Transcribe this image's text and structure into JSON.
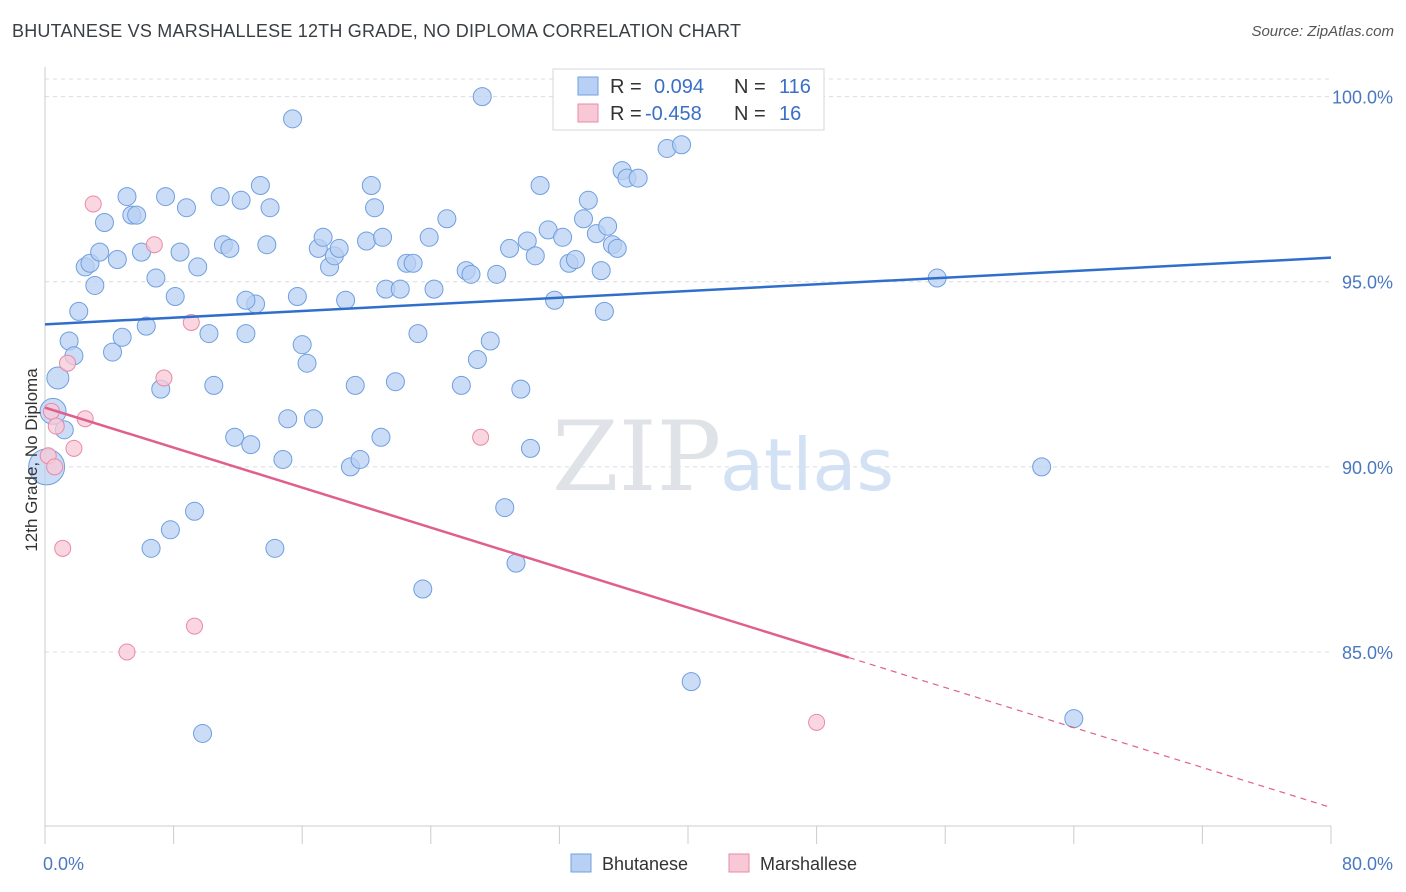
{
  "title": "BHUTANESE VS MARSHALLESE 12TH GRADE, NO DIPLOMA CORRELATION CHART",
  "source": "Source: ZipAtlas.com",
  "watermark": {
    "zip": "ZIP",
    "atlas": "atlas"
  },
  "colors": {
    "bhutanese_fill": "#b8d0f3",
    "bhutanese_stroke": "#6f9fe0",
    "bhutanese_line": "#2f6fcb",
    "marshallese_fill": "#f8c8d6",
    "marshallese_stroke": "#e88aa8",
    "marshallese_line": "#e0608c",
    "axis_text": "#4a78c0",
    "grid": "#d8dce2"
  },
  "legend": {
    "rows": [
      {
        "r_label": "R =",
        "r_value": "0.094",
        "n_label": "N =",
        "n_value": "116"
      },
      {
        "r_label": "R =",
        "r_value": "-0.458",
        "n_label": "N =",
        "n_value": "16"
      }
    ]
  },
  "bottom_legend": [
    "Bhutanese",
    "Marshallese"
  ],
  "chart_data": {
    "type": "scatter",
    "title": "BHUTANESE VS MARSHALLESE 12TH GRADE, NO DIPLOMA CORRELATION CHART",
    "xlabel": "",
    "ylabel": "12th Grade, No Diploma",
    "x_tick_labels": [
      "0.0%",
      "80.0%"
    ],
    "y_tick_labels": [
      "100.0%",
      "95.0%",
      "90.0%",
      "85.0%"
    ],
    "y_ticks": [
      100,
      95,
      90,
      85
    ],
    "xlim": [
      0,
      80
    ],
    "ylim": [
      80.3,
      100.8
    ],
    "grid": true,
    "legend_position": "top-center",
    "series": [
      {
        "name": "Bhutanese",
        "r": 0.094,
        "n": 116,
        "trend": {
          "x": [
            0,
            80
          ],
          "y": [
            93.85,
            95.65
          ],
          "dashed_from": null
        },
        "points": [
          [
            0.1,
            90.0
          ],
          [
            0.5,
            91.5
          ],
          [
            0.8,
            92.4
          ],
          [
            1.2,
            91.0
          ],
          [
            1.5,
            93.4
          ],
          [
            1.8,
            93.0
          ],
          [
            2.1,
            94.2
          ],
          [
            2.5,
            95.4
          ],
          [
            2.8,
            95.5
          ],
          [
            3.1,
            94.9
          ],
          [
            3.4,
            95.8
          ],
          [
            3.7,
            96.6
          ],
          [
            4.2,
            93.1
          ],
          [
            4.5,
            95.6
          ],
          [
            4.8,
            93.5
          ],
          [
            5.1,
            97.3
          ],
          [
            5.4,
            96.8
          ],
          [
            5.7,
            96.8
          ],
          [
            6.0,
            95.8
          ],
          [
            6.3,
            93.8
          ],
          [
            6.6,
            87.8
          ],
          [
            6.9,
            95.1
          ],
          [
            7.2,
            92.1
          ],
          [
            7.5,
            97.3
          ],
          [
            7.8,
            88.3
          ],
          [
            8.1,
            94.6
          ],
          [
            8.4,
            95.8
          ],
          [
            8.8,
            97.0
          ],
          [
            9.3,
            88.8
          ],
          [
            9.5,
            95.4
          ],
          [
            9.8,
            82.8
          ],
          [
            10.2,
            93.6
          ],
          [
            10.5,
            92.2
          ],
          [
            10.9,
            97.3
          ],
          [
            11.1,
            96.0
          ],
          [
            11.5,
            95.9
          ],
          [
            11.8,
            90.8
          ],
          [
            12.2,
            97.2
          ],
          [
            12.5,
            93.6
          ],
          [
            12.8,
            90.6
          ],
          [
            13.1,
            94.4
          ],
          [
            13.4,
            97.6
          ],
          [
            13.8,
            96.0
          ],
          [
            14.0,
            97.0
          ],
          [
            14.3,
            87.8
          ],
          [
            14.8,
            90.2
          ],
          [
            15.1,
            91.3
          ],
          [
            15.4,
            99.4
          ],
          [
            15.7,
            94.6
          ],
          [
            16.0,
            93.3
          ],
          [
            16.3,
            92.8
          ],
          [
            16.7,
            91.3
          ],
          [
            17.0,
            95.9
          ],
          [
            17.3,
            96.2
          ],
          [
            17.7,
            95.4
          ],
          [
            18.0,
            95.7
          ],
          [
            18.3,
            95.9
          ],
          [
            18.7,
            94.5
          ],
          [
            19.0,
            90.0
          ],
          [
            19.3,
            92.2
          ],
          [
            19.6,
            90.2
          ],
          [
            20.0,
            96.1
          ],
          [
            20.3,
            97.6
          ],
          [
            20.5,
            97.0
          ],
          [
            20.9,
            90.8
          ],
          [
            21.2,
            94.8
          ],
          [
            21.8,
            92.3
          ],
          [
            22.1,
            94.8
          ],
          [
            22.5,
            95.5
          ],
          [
            22.9,
            95.5
          ],
          [
            23.2,
            93.6
          ],
          [
            23.5,
            86.7
          ],
          [
            23.9,
            96.2
          ],
          [
            24.2,
            94.8
          ],
          [
            25.0,
            96.7
          ],
          [
            25.9,
            92.2
          ],
          [
            26.2,
            95.3
          ],
          [
            26.5,
            95.2
          ],
          [
            26.9,
            92.9
          ],
          [
            27.2,
            100.0
          ],
          [
            27.7,
            93.4
          ],
          [
            28.1,
            95.2
          ],
          [
            28.6,
            88.9
          ],
          [
            28.9,
            95.9
          ],
          [
            29.3,
            87.4
          ],
          [
            29.6,
            92.1
          ],
          [
            30.0,
            96.1
          ],
          [
            30.2,
            90.5
          ],
          [
            30.5,
            95.7
          ],
          [
            30.8,
            97.6
          ],
          [
            31.3,
            96.4
          ],
          [
            31.7,
            94.5
          ],
          [
            32.2,
            96.2
          ],
          [
            32.6,
            95.5
          ],
          [
            33.0,
            95.6
          ],
          [
            33.5,
            96.7
          ],
          [
            33.8,
            97.2
          ],
          [
            34.3,
            96.3
          ],
          [
            34.6,
            95.3
          ],
          [
            34.8,
            94.2
          ],
          [
            35.0,
            96.5
          ],
          [
            35.3,
            96.0
          ],
          [
            35.6,
            95.9
          ],
          [
            35.9,
            98.0
          ],
          [
            36.2,
            97.8
          ],
          [
            36.9,
            97.8
          ],
          [
            38.7,
            98.6
          ],
          [
            39.2,
            100.0
          ],
          [
            39.6,
            98.7
          ],
          [
            40.2,
            84.2
          ],
          [
            40.8,
            100.0
          ],
          [
            55.5,
            95.1
          ],
          [
            62.0,
            90.0
          ],
          [
            64.0,
            83.2
          ],
          [
            21.0,
            96.2
          ],
          [
            12.5,
            94.5
          ]
        ]
      },
      {
        "name": "Marshallese",
        "r": -0.458,
        "n": 16,
        "trend": {
          "x": [
            0,
            80
          ],
          "y": [
            91.6,
            80.8
          ],
          "dashed_from": 50
        },
        "points": [
          [
            0.2,
            90.3
          ],
          [
            0.4,
            91.5
          ],
          [
            0.7,
            91.1
          ],
          [
            1.1,
            87.8
          ],
          [
            1.4,
            92.8
          ],
          [
            1.8,
            90.5
          ],
          [
            2.5,
            91.3
          ],
          [
            3.0,
            97.1
          ],
          [
            5.1,
            85.0
          ],
          [
            6.8,
            96.0
          ],
          [
            7.4,
            92.4
          ],
          [
            9.1,
            93.9
          ],
          [
            9.3,
            85.7
          ],
          [
            27.1,
            90.8
          ],
          [
            48.0,
            83.1
          ],
          [
            0.6,
            90.0
          ]
        ]
      }
    ]
  }
}
